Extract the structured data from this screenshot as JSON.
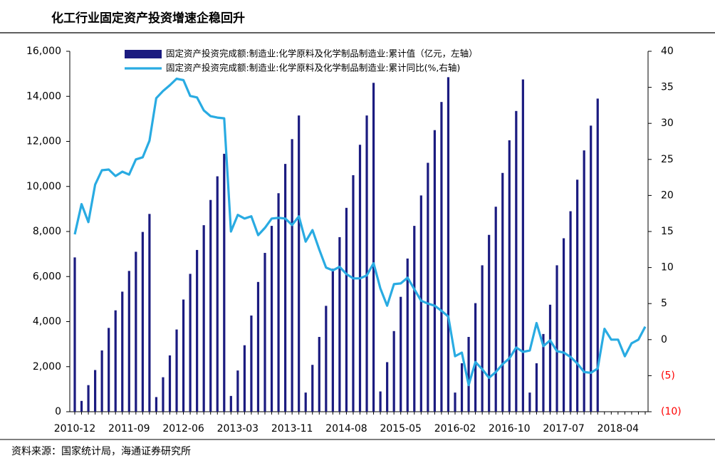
{
  "chart_data": {
    "type": "combo",
    "title": "化工行业固定资产投资增速企稳回升",
    "source": "资料来源：国家统计局，海通证券研究所",
    "categories": [
      "2010-12",
      null,
      null,
      null,
      null,
      null,
      null,
      null,
      "2011-09",
      null,
      null,
      null,
      null,
      null,
      null,
      null,
      "2012-06",
      null,
      null,
      null,
      null,
      null,
      null,
      null,
      "2013-03",
      null,
      null,
      null,
      null,
      null,
      null,
      null,
      "2013-11",
      null,
      null,
      null,
      null,
      null,
      null,
      null,
      "2014-08",
      null,
      null,
      null,
      null,
      null,
      null,
      null,
      "2015-05",
      null,
      null,
      null,
      null,
      null,
      null,
      null,
      "2016-02",
      null,
      null,
      null,
      null,
      null,
      null,
      null,
      "2016-10",
      null,
      null,
      null,
      null,
      null,
      null,
      null,
      "2017-07",
      null,
      null,
      null,
      null,
      null,
      null,
      null,
      "2018-04",
      null,
      null,
      null,
      null
    ],
    "series": [
      {
        "name": "固定资产投资完成额:制造业:化学原料及化学制品制造业:累计值（亿元，左轴）",
        "type": "bar",
        "axis": "y",
        "color": "#1b1b80",
        "values": [
          6850,
          480,
          1180,
          1850,
          2720,
          3720,
          4500,
          5330,
          6250,
          7100,
          7980,
          8780,
          650,
          1530,
          2500,
          3650,
          4980,
          6120,
          7180,
          8280,
          9400,
          10450,
          11450,
          700,
          1830,
          2950,
          4270,
          5760,
          7050,
          8250,
          9700,
          11000,
          12100,
          13150,
          850,
          2080,
          3320,
          4700,
          6350,
          7750,
          9050,
          10500,
          11850,
          13150,
          14600,
          900,
          2200,
          3580,
          5100,
          6800,
          8250,
          9600,
          11050,
          12500,
          13750,
          14850,
          850,
          2150,
          3320,
          4820,
          6500,
          7850,
          9100,
          10600,
          12050,
          13350,
          14750,
          850,
          2150,
          3450,
          4750,
          6500,
          7700,
          8900,
          10300,
          11600,
          12700,
          13900,
          null,
          null,
          null,
          null,
          null,
          null,
          null
        ]
      },
      {
        "name": "固定资产投资完成额:制造业:化学原料及化学制品制造业:累计同比(%,右轴)",
        "type": "line",
        "axis": "y2",
        "color": "#29abe2",
        "values": [
          14.6,
          18.8,
          16.3,
          21.5,
          23.5,
          23.6,
          22.7,
          23.3,
          22.9,
          25,
          25.3,
          27.6,
          33.5,
          34.5,
          35.3,
          36.2,
          36,
          33.8,
          33.6,
          31.8,
          31,
          30.8,
          30.7,
          15,
          17.3,
          16.8,
          17.1,
          14.5,
          15.5,
          16.8,
          16.9,
          16.8,
          15.9,
          17.1,
          13.6,
          15.2,
          12.5,
          10,
          9.6,
          10.1,
          9.1,
          8.5,
          8.5,
          8.9,
          10.6,
          7.1,
          4.7,
          7.7,
          7.8,
          8.6,
          7,
          5.4,
          5,
          4.7,
          4,
          3.2,
          -2.3,
          -1.8,
          -6.3,
          -3.1,
          -4.1,
          -5.3,
          -4.5,
          -3.4,
          -2.6,
          -1.1,
          -1.7,
          -1.5,
          2.3,
          -0.9,
          -0.1,
          -1.6,
          -1.8,
          -2.4,
          -3.3,
          -4.5,
          -4.6,
          -4,
          1.5,
          0,
          0,
          -2.3,
          -0.5,
          0,
          1.8
        ]
      }
    ],
    "ylim": [
      0,
      16000
    ],
    "yticks": [
      0,
      {
        "value": 2000,
        "label": "2,000"
      },
      {
        "value": 4000,
        "label": "4,000"
      },
      {
        "value": 6000,
        "label": "6,000"
      },
      {
        "value": 8000,
        "label": "8,000"
      },
      {
        "value": 10000,
        "label": "10,000"
      },
      {
        "value": 12000,
        "label": "12,000"
      },
      {
        "value": 14000,
        "label": "14,000"
      },
      {
        "value": 16000,
        "label": "16,000"
      }
    ],
    "y2lim": [
      -10,
      40
    ],
    "y2ticks": [
      {
        "value": -10,
        "label": "(10)"
      },
      {
        "value": -5,
        "label": "(5)"
      },
      0,
      5,
      10,
      15,
      20,
      25,
      30,
      35,
      40
    ],
    "negative_tick_color": "#ff0000",
    "grid": false
  }
}
